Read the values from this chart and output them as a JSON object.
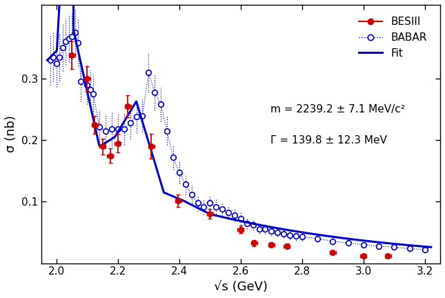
{
  "title": "",
  "xlabel": "√s (GeV)",
  "ylabel": "σ (nb)",
  "xlim": [
    1.95,
    3.25
  ],
  "ylim": [
    0.0,
    0.42
  ],
  "yticks": [
    0.1,
    0.2,
    0.3
  ],
  "xticks": [
    2.0,
    2.2,
    2.4,
    2.6,
    2.8,
    3.0,
    3.2
  ],
  "annotation_m": "m = 2239.2 ± 7.1 MeV/c²",
  "annotation_gamma": "Γ = 139.8 ± 12.3 MeV",
  "besiii_x": [
    2.05,
    2.1,
    2.125,
    2.15,
    2.175,
    2.2,
    2.232,
    2.309,
    2.396,
    2.5,
    2.6,
    2.644,
    2.7,
    2.75,
    2.9,
    3.0,
    3.08
  ],
  "besiii_y": [
    0.338,
    0.3,
    0.225,
    0.19,
    0.175,
    0.195,
    0.255,
    0.19,
    0.102,
    0.08,
    0.055,
    0.033,
    0.03,
    0.028,
    0.018,
    0.012,
    0.012
  ],
  "besiii_yerr": [
    0.022,
    0.02,
    0.015,
    0.013,
    0.012,
    0.015,
    0.018,
    0.02,
    0.01,
    0.008,
    0.006,
    0.005,
    0.004,
    0.004,
    0.003,
    0.003,
    0.003
  ],
  "besiii_xerr": [
    0.01,
    0.01,
    0.01,
    0.01,
    0.01,
    0.01,
    0.01,
    0.01,
    0.01,
    0.01,
    0.01,
    0.01,
    0.01,
    0.01,
    0.01,
    0.01,
    0.01
  ],
  "babar_x": [
    1.98,
    1.99,
    2.0,
    2.01,
    2.02,
    2.03,
    2.04,
    2.05,
    2.06,
    2.07,
    2.08,
    2.1,
    2.11,
    2.12,
    2.14,
    2.16,
    2.18,
    2.2,
    2.22,
    2.24,
    2.26,
    2.28,
    2.3,
    2.32,
    2.34,
    2.36,
    2.38,
    2.4,
    2.42,
    2.44,
    2.46,
    2.48,
    2.5,
    2.52,
    2.54,
    2.56,
    2.58,
    2.6,
    2.62,
    2.64,
    2.66,
    2.68,
    2.7,
    2.72,
    2.74,
    2.76,
    2.78,
    2.8,
    2.85,
    2.9,
    2.95,
    3.0,
    3.05,
    3.1,
    3.15,
    3.2
  ],
  "babar_y": [
    0.33,
    0.335,
    0.325,
    0.335,
    0.35,
    0.36,
    0.365,
    0.368,
    0.375,
    0.358,
    0.295,
    0.29,
    0.282,
    0.275,
    0.222,
    0.215,
    0.218,
    0.218,
    0.218,
    0.228,
    0.238,
    0.24,
    0.31,
    0.278,
    0.258,
    0.215,
    0.172,
    0.148,
    0.128,
    0.112,
    0.098,
    0.092,
    0.098,
    0.092,
    0.088,
    0.082,
    0.078,
    0.072,
    0.065,
    0.062,
    0.056,
    0.056,
    0.052,
    0.05,
    0.048,
    0.046,
    0.044,
    0.043,
    0.04,
    0.036,
    0.033,
    0.03,
    0.028,
    0.026,
    0.024,
    0.022
  ],
  "babar_yerr": [
    0.04,
    0.04,
    0.038,
    0.038,
    0.038,
    0.038,
    0.038,
    0.038,
    0.038,
    0.038,
    0.032,
    0.032,
    0.032,
    0.032,
    0.028,
    0.028,
    0.028,
    0.026,
    0.026,
    0.026,
    0.026,
    0.026,
    0.032,
    0.03,
    0.028,
    0.023,
    0.02,
    0.018,
    0.016,
    0.015,
    0.013,
    0.013,
    0.013,
    0.012,
    0.011,
    0.011,
    0.01,
    0.01,
    0.009,
    0.009,
    0.008,
    0.008,
    0.008,
    0.007,
    0.007,
    0.007,
    0.007,
    0.006,
    0.006,
    0.006,
    0.005,
    0.005,
    0.005,
    0.004,
    0.004,
    0.004
  ],
  "besiii_color": "#cc0000",
  "babar_color": "#0000cc",
  "fit_color": "#0000cc",
  "background_color": "#ffffff"
}
